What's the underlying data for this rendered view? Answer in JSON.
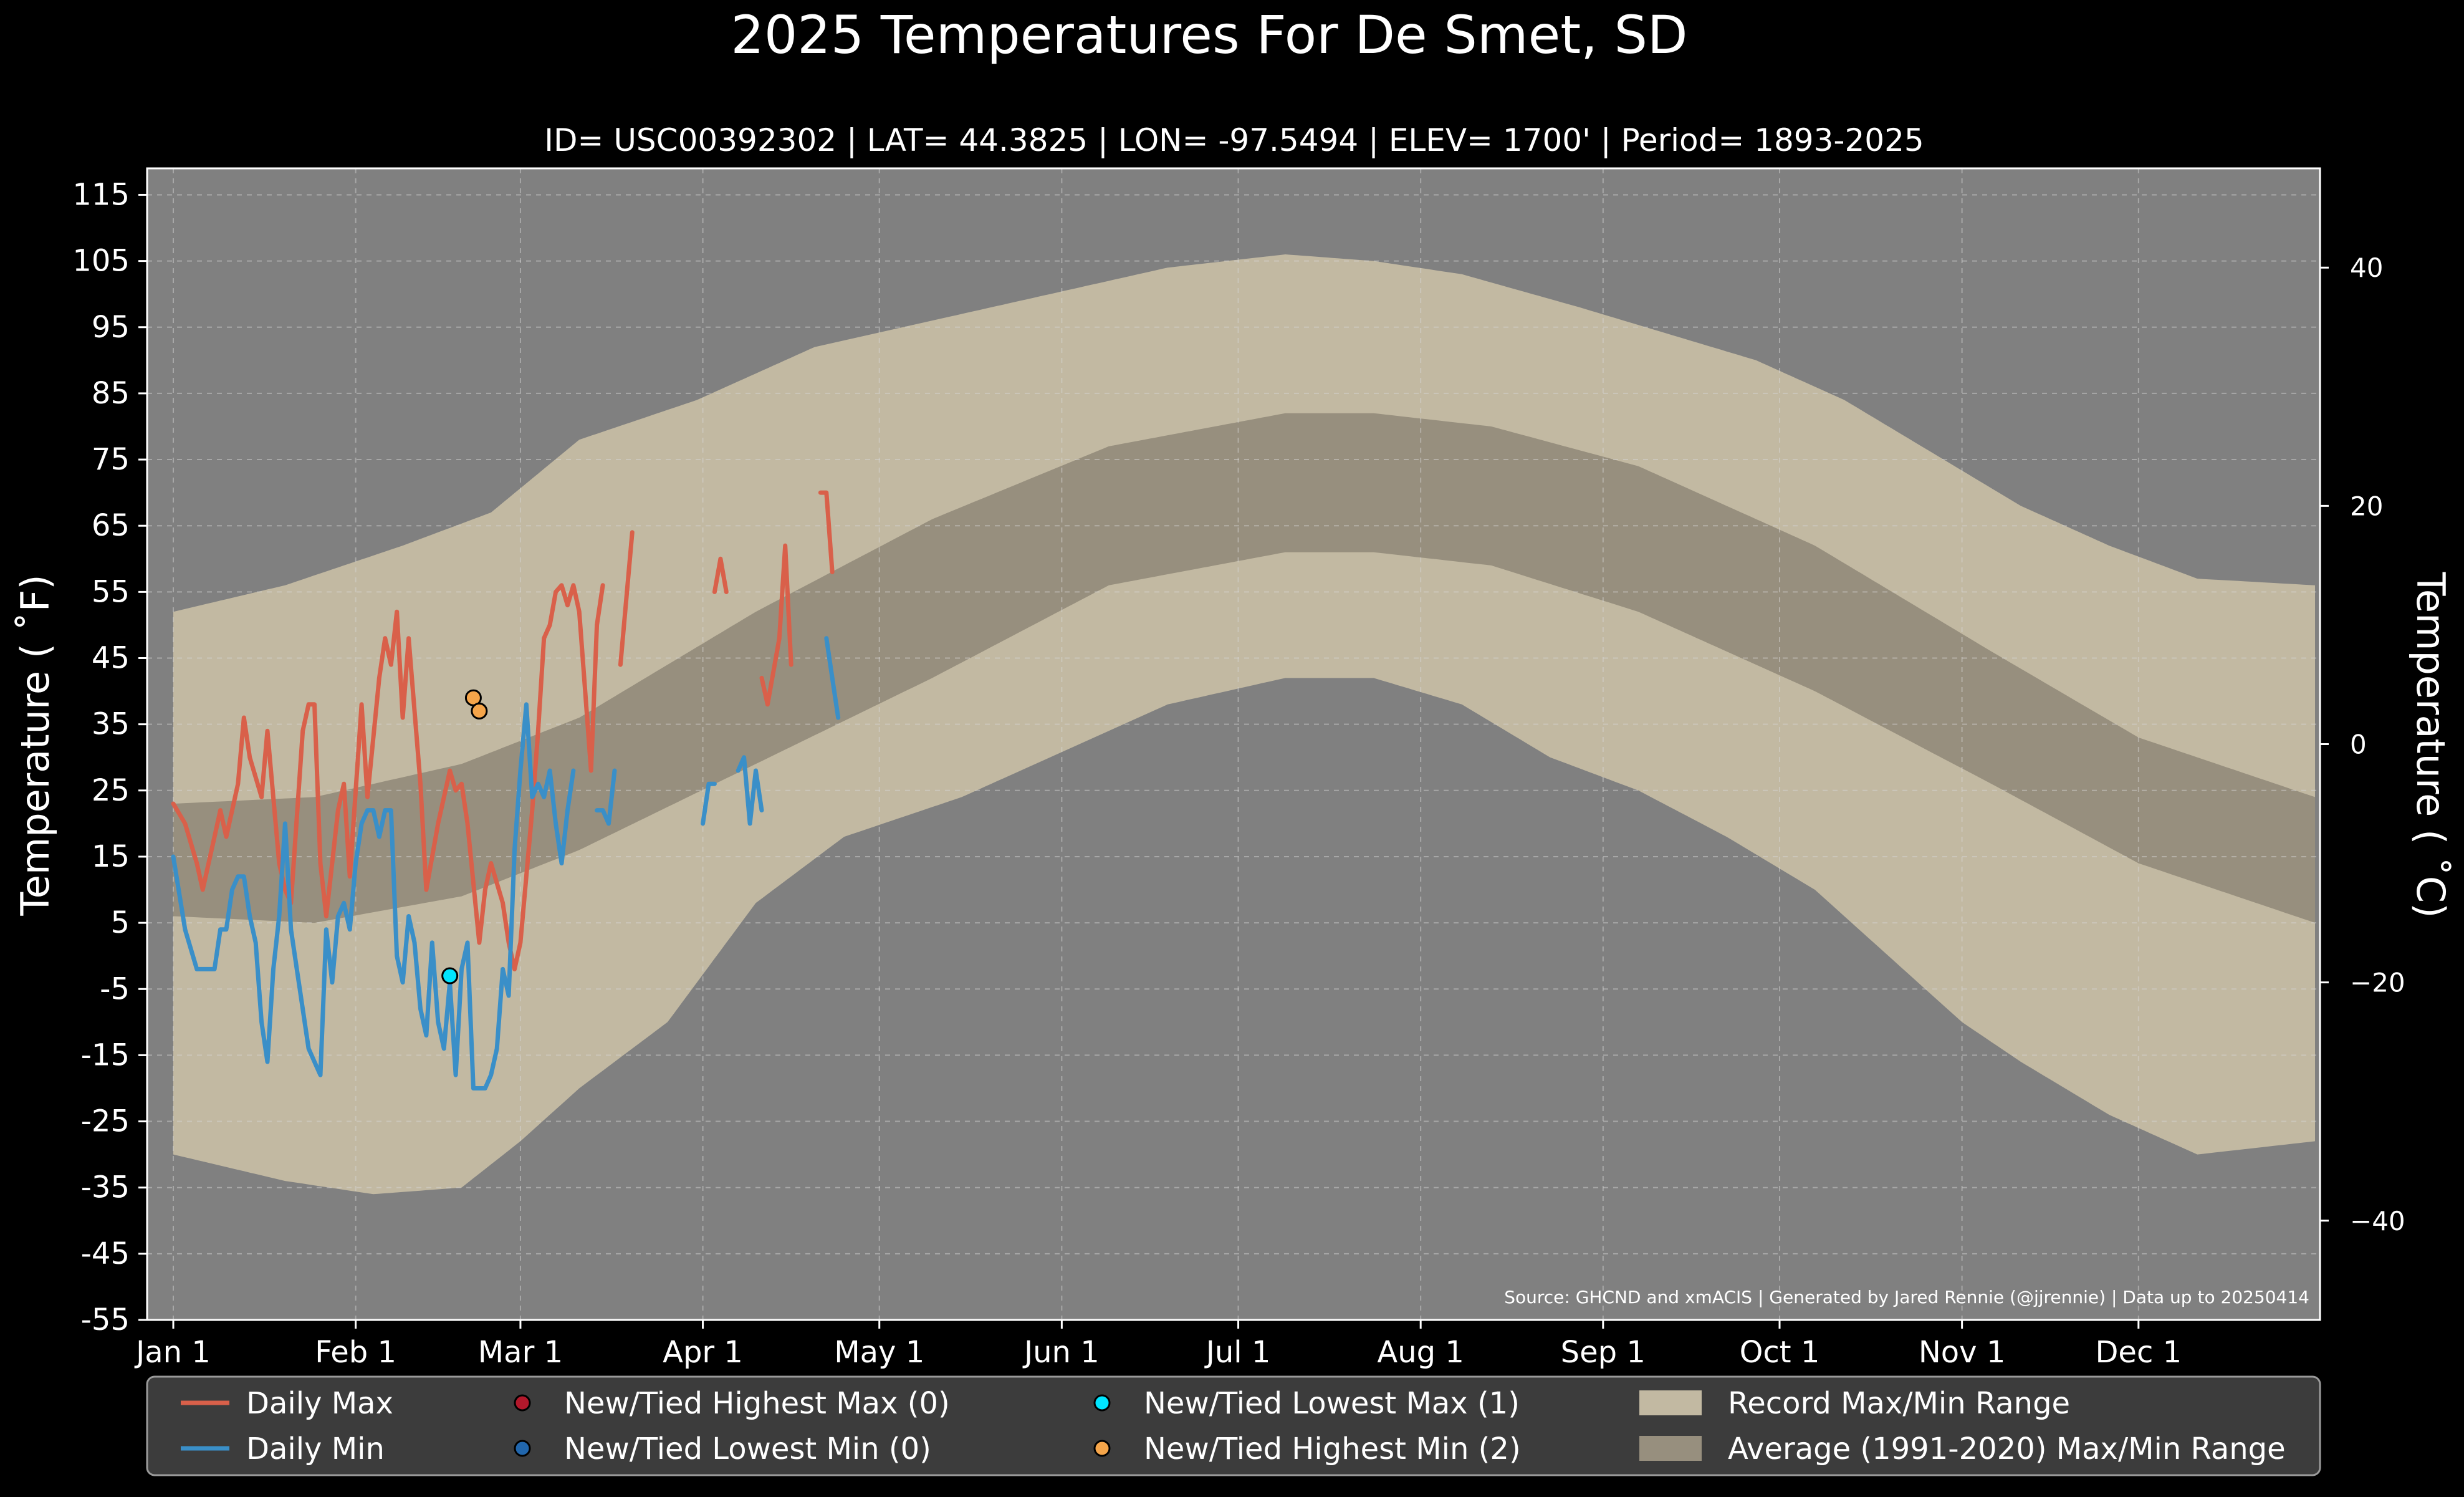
{
  "chart_data": {
    "type": "line",
    "title": "2025 Temperatures For De Smet, SD",
    "subtitle": "ID= USC00392302 | LAT= 44.3825 | LON= -97.5494 | ELEV= 1700' | Period= 1893-2025",
    "ylabel": "Temperature ($^\\circ$F)",
    "ylabel_display": "Temperature ( ˚F)",
    "y2label_display": "Temperature ( ˚C)",
    "ylim": [
      -55,
      119
    ],
    "y_ticks": [
      "115",
      "105",
      "95",
      "85",
      "75",
      "65",
      "55",
      "45",
      "35",
      "25",
      "15",
      "5",
      "-5",
      "-15",
      "-25",
      "-35",
      "-45",
      "-55"
    ],
    "y2_ticks": [
      40,
      20,
      0,
      -20,
      -40
    ],
    "x_ticks": [
      {
        "label": "Jan 1",
        "day": 1
      },
      {
        "label": "Feb 1",
        "day": 32
      },
      {
        "label": "Mar 1",
        "day": 60
      },
      {
        "label": "Apr 1",
        "day": 91
      },
      {
        "label": "May 1",
        "day": 121
      },
      {
        "label": "Jun 1",
        "day": 152
      },
      {
        "label": "Jul 1",
        "day": 182
      },
      {
        "label": "Aug 1",
        "day": 213
      },
      {
        "label": "Sep 1",
        "day": 244
      },
      {
        "label": "Oct 1",
        "day": 274
      },
      {
        "label": "Nov 1",
        "day": 305
      },
      {
        "label": "Dec 1",
        "day": 335
      }
    ],
    "grid": true,
    "source": "Source: GHCND and xmACIS | Generated by Jared Rennie (@jjrennie) | Data up to 20250414",
    "record_range_note": "Record Max/Min Range (approximate smooth profile)",
    "record_max_profile": [
      [
        1,
        52
      ],
      [
        20,
        56
      ],
      [
        40,
        62
      ],
      [
        55,
        67
      ],
      [
        70,
        78
      ],
      [
        90,
        84
      ],
      [
        110,
        92
      ],
      [
        130,
        96
      ],
      [
        150,
        100
      ],
      [
        170,
        104
      ],
      [
        190,
        106
      ],
      [
        205,
        105
      ],
      [
        220,
        103
      ],
      [
        240,
        98
      ],
      [
        255,
        94
      ],
      [
        270,
        90
      ],
      [
        285,
        84
      ],
      [
        300,
        76
      ],
      [
        315,
        68
      ],
      [
        330,
        62
      ],
      [
        345,
        57
      ],
      [
        365,
        56
      ]
    ],
    "record_min_profile": [
      [
        1,
        -30
      ],
      [
        20,
        -34
      ],
      [
        35,
        -36
      ],
      [
        50,
        -35
      ],
      [
        60,
        -28
      ],
      [
        70,
        -20
      ],
      [
        85,
        -10
      ],
      [
        100,
        8
      ],
      [
        115,
        18
      ],
      [
        135,
        24
      ],
      [
        150,
        30
      ],
      [
        170,
        38
      ],
      [
        190,
        42
      ],
      [
        205,
        42
      ],
      [
        220,
        38
      ],
      [
        235,
        30
      ],
      [
        250,
        25
      ],
      [
        265,
        18
      ],
      [
        280,
        10
      ],
      [
        290,
        2
      ],
      [
        305,
        -10
      ],
      [
        315,
        -16
      ],
      [
        330,
        -24
      ],
      [
        345,
        -30
      ],
      [
        365,
        -28
      ]
    ],
    "average_range_note": "Average (1991-2020) Max/Min Range",
    "avg_max_profile": [
      [
        1,
        23
      ],
      [
        25,
        24
      ],
      [
        50,
        29
      ],
      [
        70,
        36
      ],
      [
        100,
        52
      ],
      [
        130,
        66
      ],
      [
        160,
        77
      ],
      [
        190,
        82
      ],
      [
        205,
        82
      ],
      [
        225,
        80
      ],
      [
        250,
        74
      ],
      [
        280,
        62
      ],
      [
        310,
        46
      ],
      [
        335,
        33
      ],
      [
        365,
        24
      ]
    ],
    "avg_min_profile": [
      [
        1,
        6
      ],
      [
        25,
        5
      ],
      [
        50,
        9
      ],
      [
        70,
        16
      ],
      [
        100,
        29
      ],
      [
        130,
        42
      ],
      [
        160,
        56
      ],
      [
        190,
        61
      ],
      [
        205,
        61
      ],
      [
        225,
        59
      ],
      [
        250,
        52
      ],
      [
        280,
        40
      ],
      [
        310,
        26
      ],
      [
        335,
        14
      ],
      [
        365,
        5
      ]
    ],
    "series": [
      {
        "name": "Daily Max",
        "color": "#d9604a",
        "segments": [
          [
            [
              1,
              23
            ],
            [
              3,
              20
            ],
            [
              5,
              14
            ],
            [
              6,
              10
            ],
            [
              8,
              18
            ],
            [
              9,
              22
            ],
            [
              10,
              18
            ],
            [
              12,
              26
            ],
            [
              13,
              36
            ],
            [
              14,
              30
            ],
            [
              16,
              24
            ],
            [
              17,
              34
            ],
            [
              19,
              14
            ],
            [
              20,
              10
            ],
            [
              21,
              8
            ],
            [
              23,
              34
            ],
            [
              24,
              38
            ],
            [
              25,
              38
            ],
            [
              26,
              14
            ],
            [
              27,
              6
            ],
            [
              29,
              22
            ],
            [
              30,
              26
            ],
            [
              31,
              12
            ],
            [
              33,
              38
            ],
            [
              34,
              24
            ],
            [
              36,
              42
            ],
            [
              37,
              48
            ],
            [
              38,
              44
            ],
            [
              39,
              52
            ],
            [
              40,
              36
            ],
            [
              41,
              48
            ],
            [
              43,
              26
            ],
            [
              44,
              10
            ],
            [
              46,
              20
            ],
            [
              48,
              28
            ],
            [
              49,
              25
            ],
            [
              50,
              26
            ],
            [
              51,
              20
            ],
            [
              53,
              2
            ],
            [
              54,
              10
            ],
            [
              55,
              14
            ],
            [
              57,
              8
            ],
            [
              58,
              2
            ],
            [
              59,
              -2
            ],
            [
              60,
              2
            ],
            [
              62,
              22
            ],
            [
              63,
              34
            ],
            [
              64,
              48
            ],
            [
              65,
              50
            ],
            [
              66,
              55
            ],
            [
              67,
              56
            ],
            [
              68,
              53
            ],
            [
              69,
              56
            ],
            [
              70,
              52
            ],
            [
              71,
              40
            ],
            [
              72,
              28
            ],
            [
              73,
              50
            ],
            [
              74,
              56
            ]
          ],
          [
            [
              77,
              44
            ],
            [
              79,
              64
            ]
          ],
          [
            [
              93,
              55
            ],
            [
              94,
              60
            ],
            [
              95,
              55
            ]
          ],
          [
            [
              101,
              42
            ],
            [
              102,
              38
            ],
            [
              104,
              48
            ],
            [
              105,
              62
            ],
            [
              106,
              44
            ]
          ],
          [
            [
              111,
              70
            ],
            [
              112,
              70
            ],
            [
              113,
              58
            ]
          ]
        ]
      },
      {
        "name": "Daily Min",
        "color": "#3a8fc8",
        "segments": [
          [
            [
              1,
              15
            ],
            [
              3,
              4
            ],
            [
              5,
              -2
            ],
            [
              6,
              -2
            ],
            [
              8,
              -2
            ],
            [
              9,
              4
            ],
            [
              10,
              4
            ],
            [
              11,
              10
            ],
            [
              12,
              12
            ],
            [
              13,
              12
            ],
            [
              14,
              6
            ],
            [
              15,
              2
            ],
            [
              16,
              -10
            ],
            [
              17,
              -16
            ],
            [
              18,
              -2
            ],
            [
              19,
              6
            ],
            [
              20,
              20
            ],
            [
              21,
              4
            ],
            [
              22,
              -2
            ],
            [
              24,
              -14
            ],
            [
              25,
              -16
            ],
            [
              26,
              -18
            ],
            [
              27,
              4
            ],
            [
              28,
              -4
            ],
            [
              29,
              6
            ],
            [
              30,
              8
            ],
            [
              31,
              4
            ],
            [
              32,
              14
            ],
            [
              33,
              20
            ],
            [
              34,
              22
            ],
            [
              35,
              22
            ],
            [
              36,
              18
            ],
            [
              37,
              22
            ],
            [
              38,
              22
            ],
            [
              39,
              0
            ],
            [
              40,
              -4
            ],
            [
              41,
              6
            ],
            [
              42,
              2
            ],
            [
              43,
              -8
            ],
            [
              44,
              -12
            ],
            [
              45,
              2
            ],
            [
              46,
              -10
            ],
            [
              47,
              -14
            ],
            [
              48,
              -4
            ],
            [
              49,
              -18
            ],
            [
              50,
              -2
            ],
            [
              51,
              2
            ],
            [
              52,
              -20
            ],
            [
              53,
              -20
            ],
            [
              54,
              -20
            ],
            [
              55,
              -18
            ],
            [
              56,
              -14
            ],
            [
              57,
              -2
            ],
            [
              58,
              -6
            ],
            [
              59,
              16
            ],
            [
              60,
              28
            ],
            [
              61,
              38
            ],
            [
              62,
              24
            ],
            [
              63,
              26
            ],
            [
              64,
              24
            ],
            [
              65,
              28
            ],
            [
              66,
              20
            ],
            [
              67,
              14
            ],
            [
              68,
              22
            ],
            [
              69,
              28
            ]
          ],
          [
            [
              73,
              22
            ],
            [
              74,
              22
            ],
            [
              75,
              20
            ],
            [
              76,
              28
            ]
          ],
          [
            [
              91,
              20
            ],
            [
              92,
              26
            ],
            [
              93,
              26
            ]
          ],
          [
            [
              97,
              28
            ],
            [
              98,
              30
            ],
            [
              99,
              20
            ],
            [
              100,
              28
            ],
            [
              101,
              22
            ]
          ],
          [
            [
              112,
              48
            ],
            [
              113,
              42
            ],
            [
              114,
              36
            ]
          ]
        ]
      }
    ],
    "markers": [
      {
        "name": "New/Tied Lowest Max (1)",
        "color": "#00e5ff",
        "points": [
          [
            48,
            -3
          ]
        ]
      },
      {
        "name": "New/Tied Highest Min (2)",
        "color": "#f5a54a",
        "points": [
          [
            52,
            39
          ],
          [
            53,
            37
          ]
        ]
      }
    ],
    "legend": {
      "placement": "bottom",
      "items": [
        {
          "label": "Daily Max",
          "kind": "line",
          "color": "#d9604a"
        },
        {
          "label": "New/Tied Highest Max (0)",
          "kind": "dot",
          "color": "#b2182b"
        },
        {
          "label": "New/Tied Lowest Max (1)",
          "kind": "dot",
          "color": "#00e5ff"
        },
        {
          "label": "Record Max/Min Range",
          "kind": "patch",
          "color": "#c2b9a2"
        },
        {
          "label": "Daily Min",
          "kind": "line",
          "color": "#3a8fc8"
        },
        {
          "label": "New/Tied Lowest Min (0)",
          "kind": "dot",
          "color": "#2166ac"
        },
        {
          "label": "New/Tied Highest Min (2)",
          "kind": "dot",
          "color": "#f5a54a"
        },
        {
          "label": "Average (1991-2020) Max/Min Range",
          "kind": "patch",
          "color": "#978f7e"
        }
      ]
    },
    "colors": {
      "background": "#000000",
      "plot_bg": "#808080",
      "record": "#c2b9a2",
      "average": "#978f7e"
    }
  }
}
